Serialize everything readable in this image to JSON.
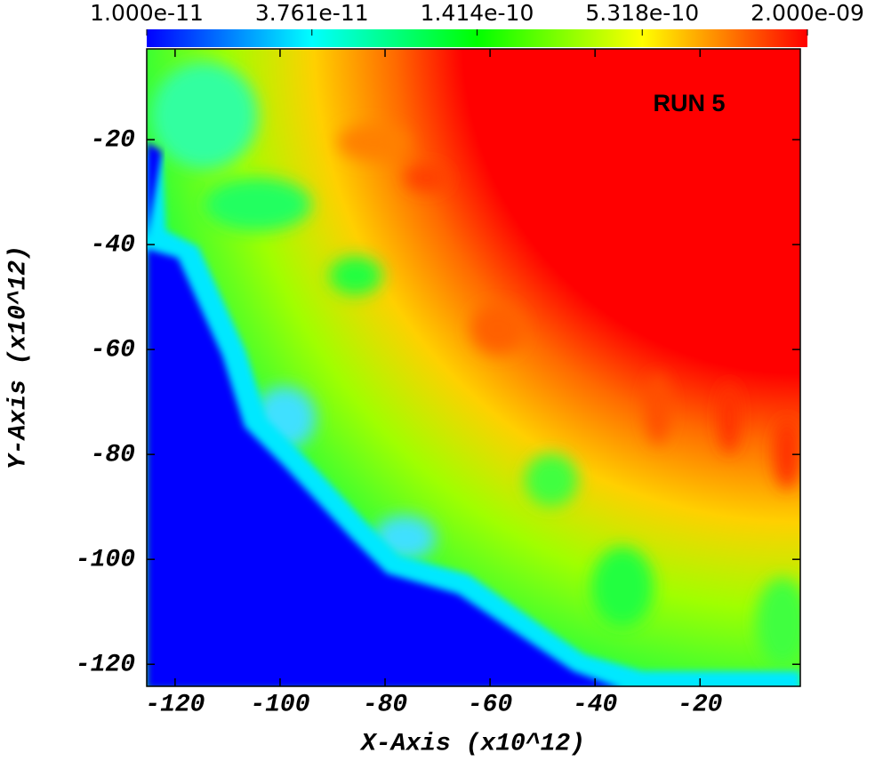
{
  "chart_data": {
    "type": "heatmap",
    "annotation": "RUN 5",
    "xlabel": "X-Axis (x10^12)",
    "ylabel": "Y-Axis (x10^12)",
    "xlim": [
      -125.4,
      -0.9
    ],
    "ylim": [
      -124.2,
      -2.7
    ],
    "xticks": [
      -120,
      -100,
      -80,
      -60,
      -40,
      -20
    ],
    "yticks": [
      -120,
      -100,
      -80,
      -60,
      -40,
      -20
    ],
    "colorbar": {
      "scale": "log",
      "lim": [
        1e-11,
        2e-09
      ],
      "colors": [
        "#0000ff",
        "#00ffff",
        "#00ff00",
        "#ffff00",
        "#ff0000"
      ],
      "ticks": [
        {
          "value": 1e-11,
          "label": "1.000e-11"
        },
        {
          "value": 3.761e-11,
          "label": "3.761e-11"
        },
        {
          "value": 1.414e-10,
          "label": "1.414e-10"
        },
        {
          "value": 5.318e-10,
          "label": "5.318e-10"
        },
        {
          "value": 2e-09,
          "label": "2.000e-09"
        }
      ]
    }
  }
}
